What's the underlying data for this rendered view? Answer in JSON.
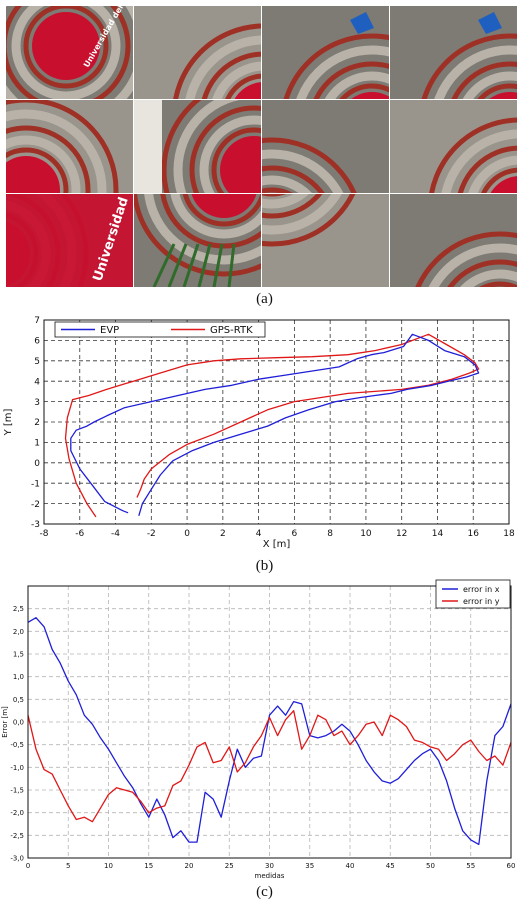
{
  "captions": {
    "a": "(a)",
    "b": "(b)",
    "c": "(c)"
  },
  "photo_tiles": [
    {
      "id": "aerial-1",
      "banner_text": "Universidad del Valle"
    },
    {
      "id": "aerial-2"
    },
    {
      "id": "aerial-3"
    },
    {
      "id": "aerial-4"
    },
    {
      "id": "aerial-5"
    },
    {
      "id": "aerial-6"
    },
    {
      "id": "aerial-7"
    },
    {
      "id": "aerial-8"
    },
    {
      "id": "aerial-9",
      "banner_text": "Universidad del Valle"
    },
    {
      "id": "aerial-10"
    },
    {
      "id": "aerial-11"
    },
    {
      "id": "aerial-12"
    }
  ],
  "colors": {
    "blue": "#1f1fd8",
    "red": "#e01818",
    "court": "#c8102e",
    "stone": "#8b8680"
  },
  "chart_data": [
    {
      "type": "line",
      "xlabel": "X [m]",
      "ylabel": "Y [m]",
      "xlim": [
        -8,
        18
      ],
      "ylim": [
        -3,
        7
      ],
      "xticks": [
        -8,
        -6,
        -4,
        -2,
        0,
        2,
        4,
        6,
        8,
        10,
        12,
        14,
        16,
        18
      ],
      "yticks": [
        -3,
        -2,
        -1,
        0,
        1,
        2,
        3,
        4,
        5,
        6,
        7
      ],
      "grid": true,
      "legend_position": "top-left",
      "series": [
        {
          "name": "EVP",
          "color": "#1f1fd8",
          "x": [
            -3.3,
            -3.6,
            -4.6,
            -5.3,
            -6.0,
            -6.5,
            -6.5,
            -6.2,
            -5.6,
            -5.2,
            -4.5,
            -3.5,
            -2.0,
            -0.5,
            1.0,
            2.5,
            4.0,
            5.5,
            7.0,
            8.5,
            9.5,
            10.3,
            11.0,
            12.1,
            12.6,
            13.5,
            14.4,
            15.5,
            16.1,
            16.3,
            15.6,
            14.6,
            13.7,
            12.3,
            11.4,
            10.5,
            9.7,
            8.3,
            6.8,
            5.5,
            4.5,
            3.0,
            1.5,
            0.3,
            -0.8,
            -1.5,
            -2.0,
            -2.5,
            -2.7
          ],
          "y": [
            -2.45,
            -2.35,
            -1.9,
            -1.1,
            -0.3,
            0.6,
            1.2,
            1.6,
            1.8,
            2.0,
            2.3,
            2.7,
            3.0,
            3.3,
            3.6,
            3.8,
            4.1,
            4.3,
            4.5,
            4.7,
            5.1,
            5.3,
            5.4,
            5.7,
            6.3,
            6.0,
            5.5,
            5.2,
            4.8,
            4.4,
            4.2,
            4.0,
            3.8,
            3.6,
            3.4,
            3.3,
            3.2,
            3.0,
            2.6,
            2.2,
            1.8,
            1.4,
            1.0,
            0.6,
            0.1,
            -0.6,
            -1.3,
            -2.0,
            -2.6
          ]
        },
        {
          "name": "GPS-RTK",
          "color": "#e01818",
          "x": [
            -5.1,
            -5.6,
            -6.2,
            -6.6,
            -6.8,
            -6.7,
            -6.4,
            -5.5,
            -4.5,
            -3.0,
            -1.5,
            0.0,
            1.5,
            3.0,
            5.0,
            7.0,
            9.0,
            10.5,
            12.0,
            13.5,
            14.5,
            15.5,
            16.1,
            16.3,
            15.8,
            14.8,
            13.5,
            12.0,
            10.5,
            9.0,
            7.5,
            6.0,
            4.5,
            3.0,
            1.5,
            0.0,
            -1.0,
            -2.0,
            -2.4,
            -2.6,
            -2.8
          ],
          "y": [
            -2.65,
            -2.0,
            -1.0,
            0.2,
            1.2,
            2.2,
            3.1,
            3.3,
            3.6,
            4.0,
            4.4,
            4.8,
            5.0,
            5.1,
            5.15,
            5.2,
            5.3,
            5.5,
            5.8,
            6.3,
            5.8,
            5.3,
            4.9,
            4.6,
            4.4,
            4.1,
            3.8,
            3.6,
            3.5,
            3.4,
            3.2,
            3.0,
            2.6,
            2.0,
            1.4,
            0.9,
            0.4,
            -0.3,
            -0.8,
            -1.3,
            -1.7
          ]
        }
      ]
    },
    {
      "type": "line",
      "xlabel": "medidas",
      "ylabel": "Error [m]",
      "xlim": [
        0,
        60
      ],
      "ylim": [
        -3.0,
        3.0
      ],
      "xticks": [
        0,
        5,
        10,
        15,
        20,
        25,
        30,
        35,
        40,
        45,
        50,
        55,
        60
      ],
      "yticks": [
        -3.0,
        -2.5,
        -2.0,
        -1.5,
        -1.0,
        -0.5,
        0.0,
        0.5,
        1.0,
        1.5,
        2.0,
        2.5
      ],
      "ytick_labels": [
        "-3,0",
        "-2,5",
        "-2,0",
        "-1,5",
        "-1,0",
        "-0,5",
        "0,0",
        "0,5",
        "1,0",
        "1,5",
        "2,0",
        "2,5"
      ],
      "grid": true,
      "legend_position": "top-right",
      "series": [
        {
          "name": "error in x",
          "color": "#1f1fd8",
          "x": [
            0,
            1,
            2,
            3,
            4,
            5,
            6,
            7,
            8,
            9,
            10,
            11,
            12,
            13,
            14,
            15,
            16,
            17,
            18,
            19,
            20,
            21,
            22,
            23,
            24,
            25,
            26,
            27,
            28,
            29,
            30,
            31,
            32,
            33,
            34,
            35,
            36,
            37,
            38,
            39,
            40,
            41,
            42,
            43,
            44,
            45,
            46,
            47,
            48,
            49,
            50,
            51,
            52,
            53,
            54,
            55,
            56,
            57,
            58,
            59,
            60
          ],
          "values": [
            2.2,
            2.3,
            2.1,
            1.6,
            1.3,
            0.9,
            0.6,
            0.15,
            -0.05,
            -0.35,
            -0.6,
            -0.9,
            -1.2,
            -1.45,
            -1.8,
            -2.1,
            -1.7,
            -2.05,
            -2.55,
            -2.4,
            -2.65,
            -2.65,
            -1.55,
            -1.7,
            -2.1,
            -1.3,
            -0.6,
            -1.0,
            -0.8,
            -0.75,
            0.15,
            0.35,
            0.15,
            0.45,
            0.4,
            -0.3,
            -0.35,
            -0.3,
            -0.2,
            -0.05,
            -0.2,
            -0.5,
            -0.85,
            -1.1,
            -1.3,
            -1.35,
            -1.25,
            -1.05,
            -0.85,
            -0.7,
            -0.6,
            -0.85,
            -1.3,
            -1.9,
            -2.4,
            -2.6,
            -2.7,
            -1.3,
            -0.3,
            -0.1,
            0.4
          ]
        },
        {
          "name": "error in y",
          "color": "#e01818",
          "x": [
            0,
            1,
            2,
            3,
            4,
            5,
            6,
            7,
            8,
            9,
            10,
            11,
            12,
            13,
            14,
            15,
            16,
            17,
            18,
            19,
            20,
            21,
            22,
            23,
            24,
            25,
            26,
            27,
            28,
            29,
            30,
            31,
            32,
            33,
            34,
            35,
            36,
            37,
            38,
            39,
            40,
            41,
            42,
            43,
            44,
            45,
            46,
            47,
            48,
            49,
            50,
            51,
            52,
            53,
            54,
            55,
            56,
            57,
            58,
            59,
            60
          ],
          "values": [
            0.15,
            -0.6,
            -1.05,
            -1.15,
            -1.5,
            -1.85,
            -2.15,
            -2.1,
            -2.2,
            -1.9,
            -1.6,
            -1.45,
            -1.5,
            -1.55,
            -1.75,
            -2.0,
            -1.9,
            -1.85,
            -1.4,
            -1.3,
            -0.95,
            -0.55,
            -0.45,
            -0.9,
            -0.85,
            -0.55,
            -1.1,
            -0.9,
            -0.55,
            -0.3,
            0.1,
            -0.3,
            0.05,
            0.25,
            -0.6,
            -0.3,
            0.15,
            0.05,
            -0.3,
            -0.2,
            -0.5,
            -0.3,
            -0.05,
            0.0,
            -0.3,
            0.15,
            0.05,
            -0.1,
            -0.4,
            -0.45,
            -0.55,
            -0.6,
            -0.85,
            -0.7,
            -0.5,
            -0.4,
            -0.65,
            -0.85,
            -0.75,
            -0.95,
            -0.45
          ]
        }
      ]
    }
  ]
}
